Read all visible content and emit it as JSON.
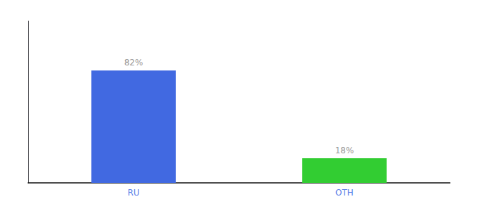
{
  "chart_data": {
    "type": "bar",
    "categories": [
      "RU",
      "OTH"
    ],
    "values": [
      82,
      18
    ],
    "value_labels": [
      "82%",
      "18%"
    ],
    "data_labels": true,
    "colors": [
      "#4169e1",
      "#32cd32"
    ],
    "ylim": [
      0,
      118
    ],
    "tick_labels": "x",
    "grid": false
  }
}
